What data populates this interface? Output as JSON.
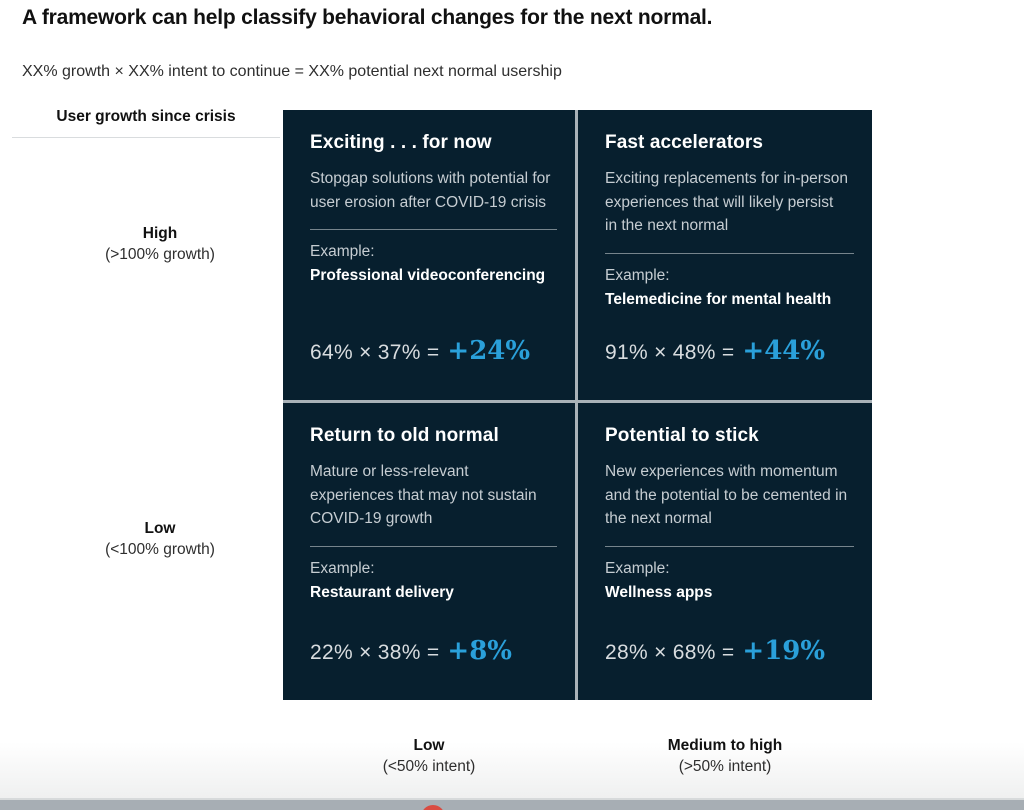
{
  "page": {
    "title": "A framework can help classify behavioral changes for the next normal.",
    "formula_legend": "XX% growth × XX% intent to continue = XX% potential next normal usership"
  },
  "y_axis": {
    "title": "User growth since crisis",
    "high": {
      "label": "High",
      "sublabel": "(>100% growth)"
    },
    "low": {
      "label": "Low",
      "sublabel": "(<100% growth)"
    }
  },
  "x_axis": {
    "low": {
      "label": "Low",
      "sublabel": "(<50% intent)"
    },
    "medium_high": {
      "label": "Medium to high",
      "sublabel": "(>50% intent)"
    }
  },
  "quadrants": [
    {
      "position": "top-left",
      "heading": "Exciting . . . for now",
      "description": "Stopgap solutions with potential for user erosion after COVID-19 crisis",
      "example_label": "Example:",
      "example": "Professional videoconferencing",
      "equation": "64% × 37% =",
      "result": "+24%"
    },
    {
      "position": "top-right",
      "heading": "Fast accelerators",
      "description": "Exciting replacements for in-person experiences that will likely persist in the next normal",
      "example_label": "Example:",
      "example": "Telemedicine for mental health",
      "equation": "91% × 48% =",
      "result": "+44%"
    },
    {
      "position": "bottom-left",
      "heading": "Return to old normal",
      "description": "Mature or less-relevant experiences that may not sustain COVID-19 growth",
      "example_label": "Example:",
      "example": "Restaurant delivery",
      "equation": "22% × 38% =",
      "result": "+8%"
    },
    {
      "position": "bottom-right",
      "heading": "Potential to stick",
      "description": "New experiences with momentum and the potential to be cemented in the next normal",
      "example_label": "Example:",
      "example": "Wellness apps",
      "equation": "28% × 68% =",
      "result": "+19%"
    }
  ],
  "colors": {
    "quadrant_background": "#071f2e",
    "accent_blue": "#2aa0da",
    "divider_gray": "#a9b2b8",
    "bottom_band_gray": "#a7aeb4",
    "bottom_dot_red": "#d94c42"
  }
}
